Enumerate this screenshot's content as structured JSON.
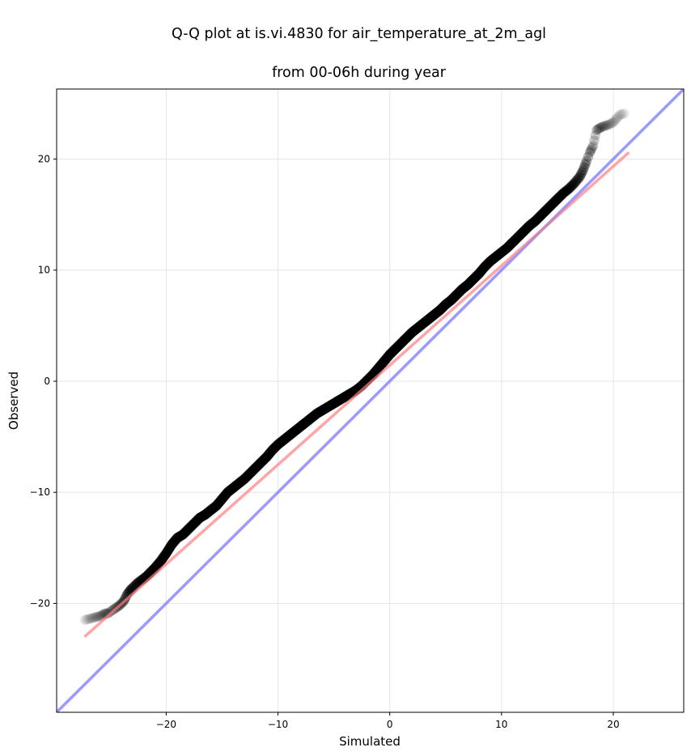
{
  "chart_data": {
    "type": "scatter",
    "title_lines": [
      "Q-Q plot at is.vi.4830 for air_temperature_at_2m_agl",
      "from 00-06h during year"
    ],
    "xlabel": "Simulated",
    "ylabel": "Observed",
    "xlim": [
      -29.8,
      26.3
    ],
    "ylim": [
      -29.8,
      26.3
    ],
    "xticks": [
      -20,
      -10,
      0,
      10,
      20
    ],
    "yticks": [
      -20,
      -10,
      0,
      10,
      20
    ],
    "xtick_labels": [
      "−20",
      "−10",
      "0",
      "10",
      "20"
    ],
    "ytick_labels": [
      "−20",
      "−10",
      "0",
      "10",
      "20"
    ],
    "grid": true,
    "series": [
      {
        "kind": "quantiles",
        "color": "#000000",
        "x": [
          -27.3,
          -25.8,
          -25.5,
          -25.2,
          -24.8,
          -24.2,
          -23.8,
          -23.5,
          -23.2,
          -23.0,
          -22.6,
          -22.2,
          -21.8,
          -21.4,
          -21.0,
          -20.5,
          -20.0,
          -19.5,
          -19.0,
          -18.5,
          -18.0,
          -17.5,
          -17.0,
          -16.5,
          -16.0,
          -15.5,
          -15.0,
          -14.5,
          -14.0,
          -13.5,
          -13.0,
          -12.5,
          -12.0,
          -11.5,
          -11.0,
          -10.5,
          -10.0,
          -9.5,
          -9.0,
          -8.5,
          -8.0,
          -7.5,
          -7.0,
          -6.5,
          -6.0,
          -5.5,
          -5.0,
          -4.5,
          -4.0,
          -3.5,
          -3.0,
          -2.5,
          -2.0,
          -1.5,
          -1.0,
          -0.5,
          0.0,
          0.5,
          1.0,
          1.5,
          2.0,
          2.5,
          3.0,
          3.5,
          4.0,
          4.5,
          5.0,
          5.5,
          6.0,
          6.5,
          7.0,
          7.5,
          8.0,
          8.5,
          9.0,
          9.5,
          10.0,
          10.5,
          11.0,
          11.5,
          12.0,
          12.5,
          13.0,
          13.5,
          14.0,
          14.5,
          15.0,
          15.5,
          16.0,
          16.5,
          17.0,
          17.3,
          17.6,
          17.9,
          18.2,
          18.5,
          18.8,
          19.0,
          19.6,
          20.0,
          20.6,
          21.0
        ],
        "y": [
          -21.5,
          -21.1,
          -20.9,
          -20.9,
          -20.6,
          -20.2,
          -19.8,
          -19.2,
          -18.8,
          -18.6,
          -18.2,
          -17.9,
          -17.6,
          -17.2,
          -16.8,
          -16.2,
          -15.5,
          -14.7,
          -14.1,
          -13.8,
          -13.3,
          -12.8,
          -12.3,
          -12.0,
          -11.6,
          -11.2,
          -10.6,
          -10.0,
          -9.6,
          -9.2,
          -8.8,
          -8.3,
          -7.8,
          -7.3,
          -6.8,
          -6.2,
          -5.7,
          -5.3,
          -4.9,
          -4.5,
          -4.1,
          -3.7,
          -3.3,
          -2.9,
          -2.6,
          -2.3,
          -2.0,
          -1.7,
          -1.4,
          -1.1,
          -0.8,
          -0.4,
          0.1,
          0.6,
          1.2,
          1.8,
          2.4,
          2.9,
          3.4,
          3.9,
          4.4,
          4.8,
          5.2,
          5.6,
          6.0,
          6.4,
          6.9,
          7.3,
          7.8,
          8.3,
          8.7,
          9.2,
          9.7,
          10.3,
          10.8,
          11.2,
          11.6,
          12.0,
          12.5,
          13.0,
          13.5,
          14.0,
          14.4,
          14.9,
          15.4,
          15.9,
          16.4,
          16.9,
          17.3,
          17.8,
          18.4,
          19.0,
          19.8,
          20.6,
          21.2,
          22.6,
          22.8,
          22.9,
          23.1,
          23.3,
          24.0,
          24.1
        ]
      },
      {
        "kind": "regression-line",
        "color": "#ff7f7f",
        "x": [
          -27.3,
          21.4
        ],
        "y": [
          -23.0,
          20.6
        ]
      },
      {
        "kind": "identity-line",
        "color": "#7f7fff",
        "x": [
          -29.8,
          26.3
        ],
        "y": [
          -29.8,
          26.3
        ]
      }
    ]
  }
}
